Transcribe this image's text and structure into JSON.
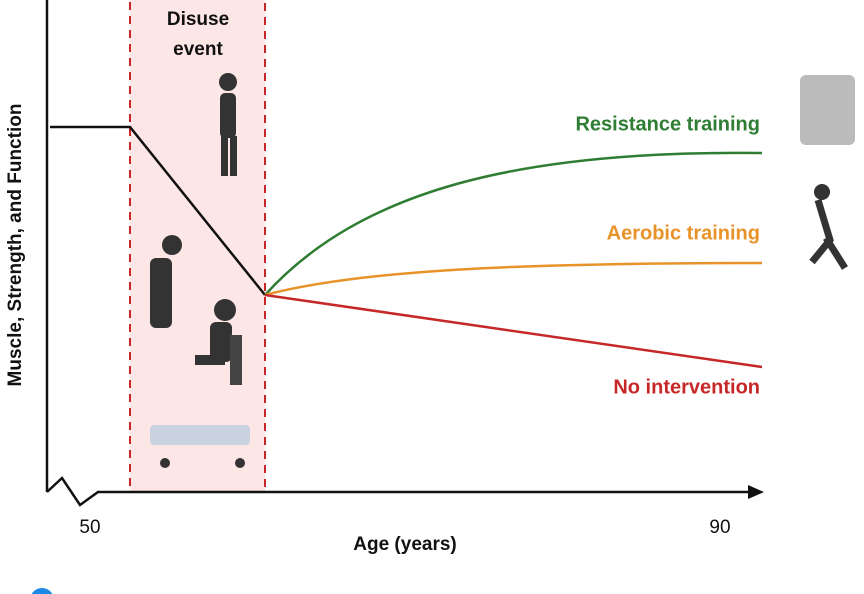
{
  "diagram": {
    "y_axis_label": "Muscle, Strength, and Function",
    "x_axis_label": "Age (years)",
    "x_axis_start_label": "50",
    "x_axis_end_label": "90",
    "event_label_line1": "Disuse",
    "event_label_line2": "event",
    "paths": [
      {
        "label": "Resistance training",
        "color": "#2e7d32"
      },
      {
        "label": "Aerobic training",
        "color": "#e8932a"
      },
      {
        "label": "No intervention",
        "color": "#c62828"
      }
    ]
  }
}
